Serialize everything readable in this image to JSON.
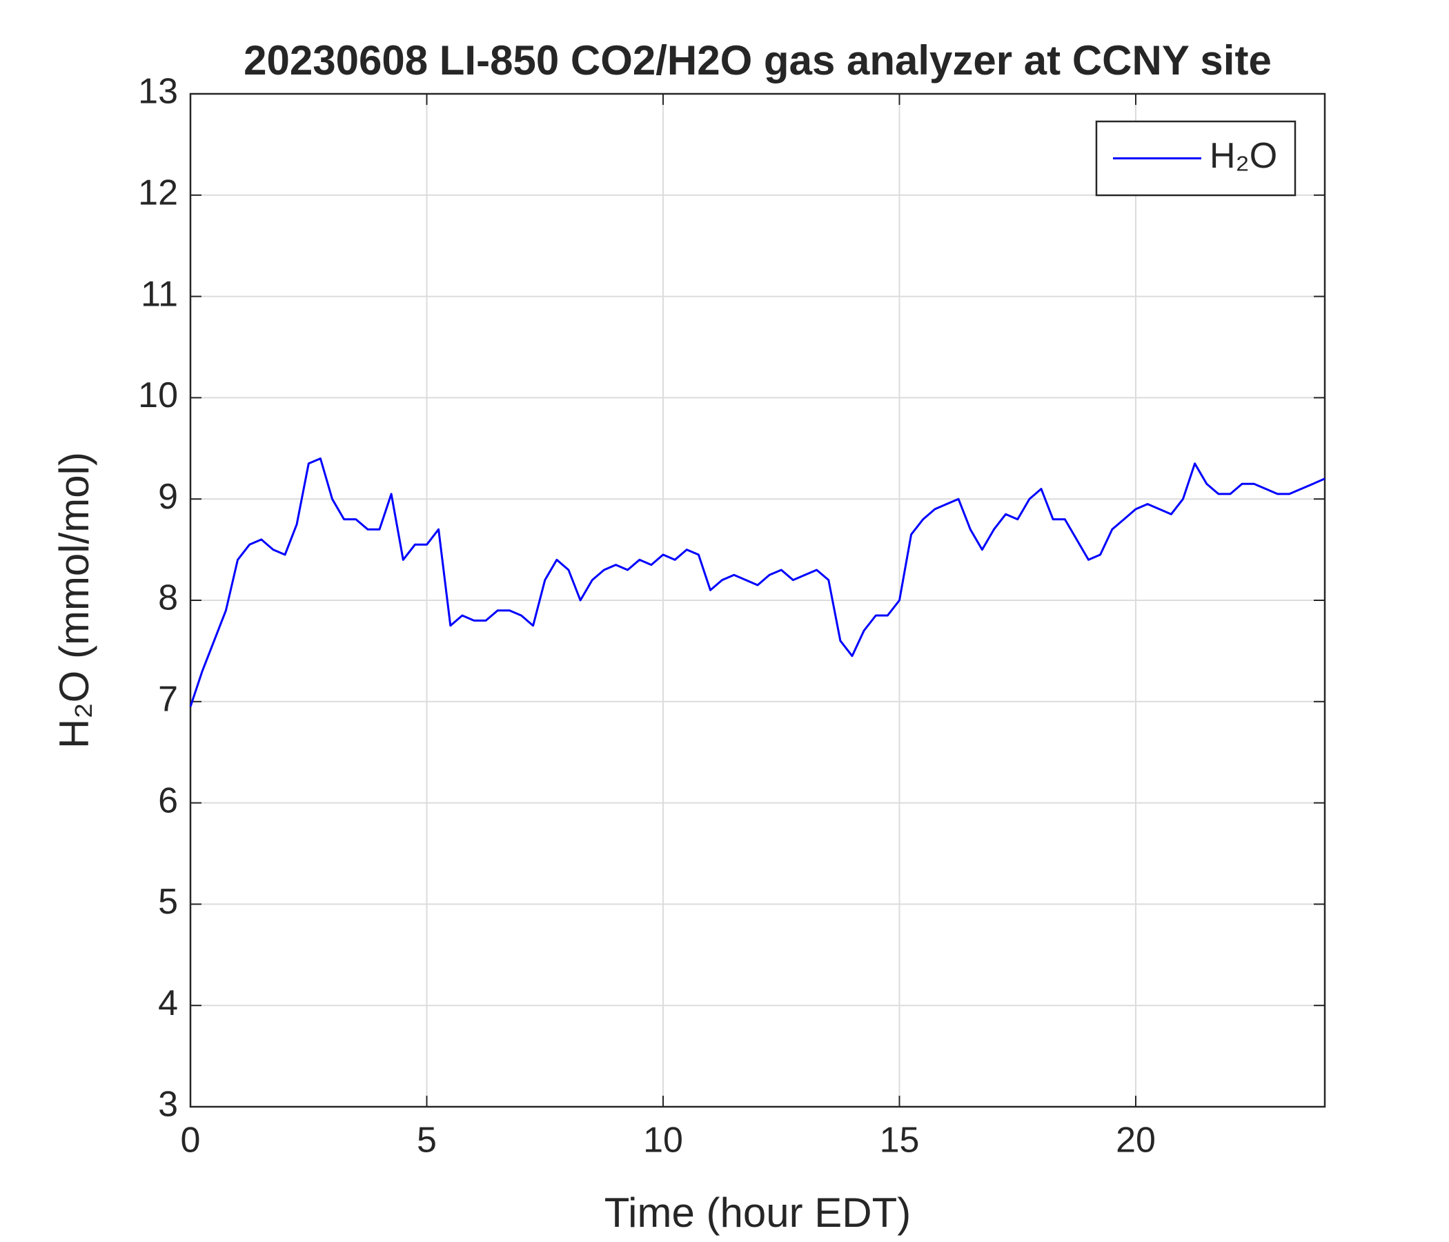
{
  "chart_data": {
    "type": "line",
    "title": "20230608 LI-850 CO2/H2O gas analyzer at CCNY site",
    "xlabel": "Time (hour EDT)",
    "ylabel": "H₂O (mmol/mol)",
    "x": [
      0,
      0.25,
      0.5,
      0.75,
      1,
      1.25,
      1.5,
      1.75,
      2,
      2.25,
      2.5,
      2.75,
      3,
      3.25,
      3.5,
      3.75,
      4,
      4.25,
      4.5,
      4.75,
      5,
      5.25,
      5.5,
      5.75,
      6,
      6.25,
      6.5,
      6.75,
      7,
      7.25,
      7.5,
      7.75,
      8,
      8.25,
      8.5,
      8.75,
      9,
      9.25,
      9.5,
      9.75,
      10,
      10.25,
      10.5,
      10.75,
      11,
      11.25,
      11.5,
      11.75,
      12,
      12.25,
      12.5,
      12.75,
      13,
      13.25,
      13.5,
      13.75,
      14,
      14.25,
      14.5,
      14.75,
      15,
      15.25,
      15.5,
      15.75,
      16,
      16.25,
      16.5,
      16.75,
      17,
      17.25,
      17.5,
      17.75,
      18,
      18.25,
      18.5,
      18.75,
      19,
      19.25,
      19.5,
      19.75,
      20,
      20.25,
      20.5,
      20.75,
      21,
      21.25,
      21.5,
      21.75,
      22,
      22.25,
      22.5,
      22.75,
      23,
      23.25,
      23.5,
      23.75,
      24
    ],
    "series": [
      {
        "name": "H₂O",
        "color": "#0000ff",
        "values": [
          6.95,
          7.3,
          7.6,
          7.9,
          8.4,
          8.55,
          8.6,
          8.5,
          8.45,
          8.75,
          9.35,
          9.4,
          9.0,
          8.8,
          8.8,
          8.7,
          8.7,
          9.05,
          8.4,
          8.55,
          8.55,
          8.7,
          7.75,
          7.85,
          7.8,
          7.8,
          7.9,
          7.9,
          7.85,
          7.75,
          8.2,
          8.4,
          8.3,
          8.0,
          8.2,
          8.3,
          8.35,
          8.3,
          8.4,
          8.35,
          8.45,
          8.4,
          8.5,
          8.45,
          8.1,
          8.2,
          8.25,
          8.2,
          8.15,
          8.25,
          8.3,
          8.2,
          8.25,
          8.3,
          8.2,
          7.6,
          7.45,
          7.7,
          7.85,
          7.85,
          8.0,
          8.65,
          8.8,
          8.9,
          8.95,
          9.0,
          8.7,
          8.5,
          8.7,
          8.85,
          8.8,
          9.0,
          9.1,
          8.8,
          8.8,
          8.6,
          8.4,
          8.45,
          8.7,
          8.8,
          8.9,
          8.95,
          8.9,
          8.85,
          9.0,
          9.35,
          9.15,
          9.05,
          9.05,
          9.15,
          9.15,
          9.1,
          9.05,
          9.05,
          9.1,
          9.15,
          9.2
        ]
      }
    ],
    "xlim": [
      0,
      24
    ],
    "xticks": [
      0,
      5,
      10,
      15,
      20
    ],
    "ylim": [
      3,
      13
    ],
    "yticks": [
      3,
      4,
      5,
      6,
      7,
      8,
      9,
      10,
      11,
      12,
      13
    ],
    "grid": true,
    "legend": "upper right"
  }
}
